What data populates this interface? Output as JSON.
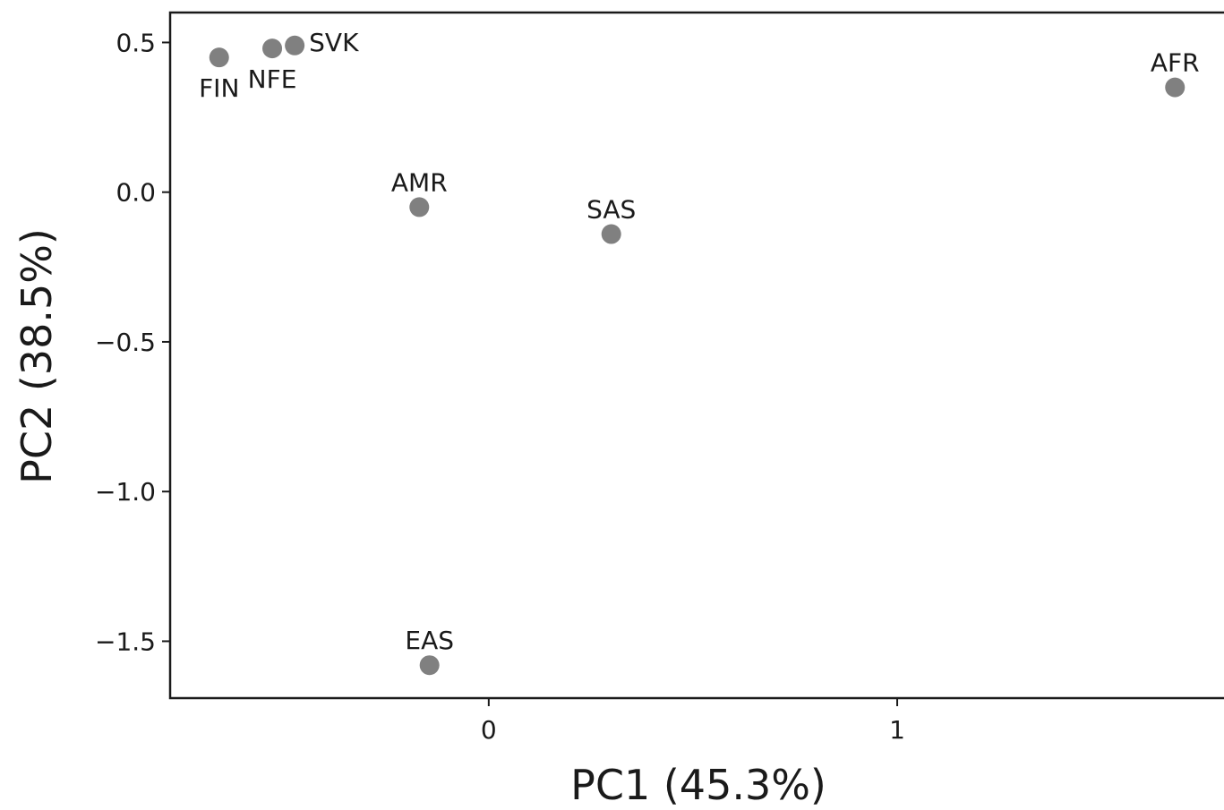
{
  "chart_data": {
    "type": "scatter",
    "xlabel": "PC1 (45.3%)",
    "ylabel": "PC2 (38.5%)",
    "xlim": [
      -0.78,
      1.8
    ],
    "ylim": [
      -1.69,
      0.6
    ],
    "xticks": [
      0,
      1
    ],
    "xtick_labels": [
      "0",
      "1"
    ],
    "yticks": [
      0.5,
      0.0,
      -0.5,
      -1.0,
      -1.5
    ],
    "ytick_labels": [
      "0.5",
      "0.0",
      "−0.5",
      "−1.0",
      "−1.5"
    ],
    "grid": false,
    "marker_color": "#808080",
    "points": [
      {
        "label": "FIN",
        "x": -0.66,
        "y": 0.45,
        "label_pos": "below"
      },
      {
        "label": "NFE",
        "x": -0.53,
        "y": 0.48,
        "label_pos": "below"
      },
      {
        "label": "SVK",
        "x": -0.475,
        "y": 0.49,
        "label_pos": "right"
      },
      {
        "label": "AMR",
        "x": -0.17,
        "y": -0.05,
        "label_pos": "above"
      },
      {
        "label": "SAS",
        "x": 0.3,
        "y": -0.14,
        "label_pos": "above"
      },
      {
        "label": "EAS",
        "x": -0.145,
        "y": -1.58,
        "label_pos": "above"
      },
      {
        "label": "AFR",
        "x": 1.68,
        "y": 0.35,
        "label_pos": "above"
      }
    ]
  }
}
